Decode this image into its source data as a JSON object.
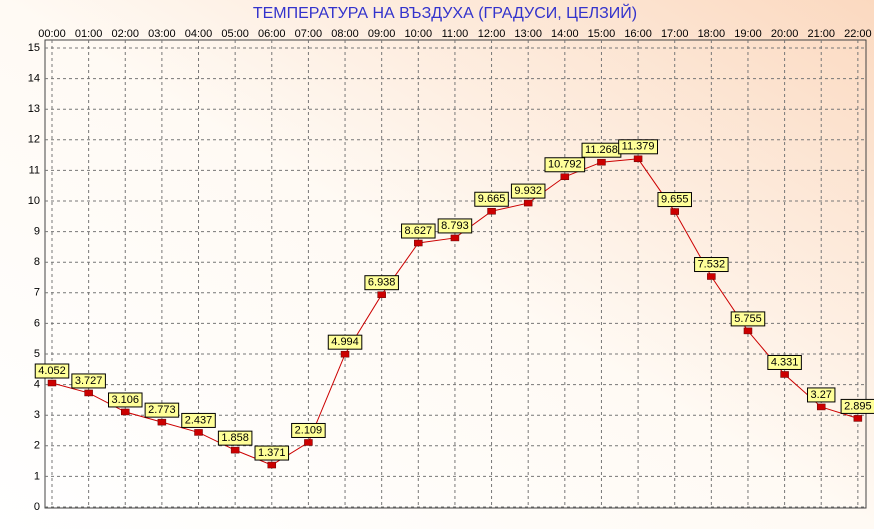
{
  "chart_data": {
    "type": "line",
    "title": "ТЕМПЕРАТУРА НА ВЪЗДУХА  (ГРАДУСИ, ЦЕЛЗИЙ)",
    "categories": [
      "00:00",
      "01:00",
      "02:00",
      "03:00",
      "04:00",
      "05:00",
      "06:00",
      "07:00",
      "08:00",
      "09:00",
      "10:00",
      "11:00",
      "12:00",
      "13:00",
      "14:00",
      "15:00",
      "16:00",
      "17:00",
      "18:00",
      "19:00",
      "20:00",
      "21:00",
      "22:00"
    ],
    "values": [
      4.052,
      3.727,
      3.106,
      2.773,
      2.437,
      1.858,
      1.371,
      2.109,
      4.994,
      6.938,
      8.627,
      8.793,
      9.665,
      9.932,
      10.792,
      11.268,
      11.379,
      9.655,
      7.532,
      5.755,
      4.331,
      3.27,
      2.895
    ],
    "color": "#cc0000",
    "label_color": "#ffff99",
    "ylim": [
      0,
      15
    ],
    "yticks": [
      0,
      1,
      2,
      3,
      4,
      5,
      6,
      7,
      8,
      9,
      10,
      11,
      12,
      13,
      14,
      15
    ],
    "grid": true
  }
}
